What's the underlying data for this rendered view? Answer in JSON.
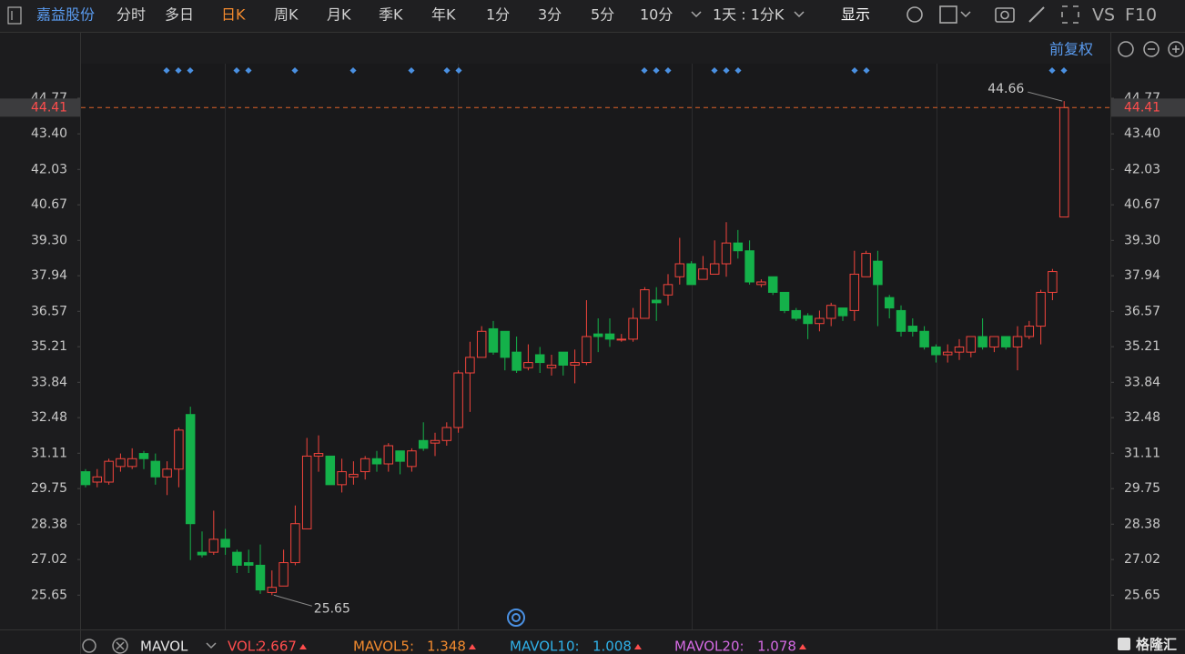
{
  "toolbar": {
    "stock": "嘉益股份",
    "tabs": [
      "分时",
      "多日",
      "日K",
      "周K",
      "月K",
      "季K",
      "年K",
      "1分",
      "3分",
      "5分",
      "10分"
    ],
    "period": "1天 : 1分K",
    "display": "显示",
    "vs": "VS",
    "f10": "F10",
    "adjust": "前复权"
  },
  "indicators": {
    "name": "MAVOL",
    "vol_label": "VOL:",
    "vol": 2.667,
    "mavol5_label": "MAVOL5:",
    "mavol5": 1.348,
    "mavol10_label": "MAVOL10:",
    "mavol10": 1.008,
    "mavol20_label": "MAVOL20:",
    "mavol20": 1.078,
    "watermark": "格隆汇"
  },
  "chart_data": {
    "type": "candlestick",
    "up_color": "#f2443c",
    "down_color": "#14b14a",
    "ylim": [
      24.4,
      46.1
    ],
    "yticks": [
      {
        "value": 44.77,
        "label": "44.77"
      },
      {
        "value": 43.4,
        "label": "43.40"
      },
      {
        "value": 42.03,
        "label": "42.03"
      },
      {
        "value": 40.67,
        "label": "40.67"
      },
      {
        "value": 39.3,
        "label": "39.30"
      },
      {
        "value": 37.94,
        "label": "37.94"
      },
      {
        "value": 36.57,
        "label": "36.57"
      },
      {
        "value": 35.21,
        "label": "35.21"
      },
      {
        "value": 33.84,
        "label": "33.84"
      },
      {
        "value": 32.48,
        "label": "32.48"
      },
      {
        "value": 31.11,
        "label": "31.11"
      },
      {
        "value": 29.75,
        "label": "29.75"
      },
      {
        "value": 28.38,
        "label": "28.38"
      },
      {
        "value": 27.02,
        "label": "27.02"
      },
      {
        "value": 25.65,
        "label": "25.65"
      }
    ],
    "grid": false,
    "last": 44.41,
    "max": 44.66,
    "min": 25.65,
    "open": [
      30.4,
      30.0,
      30.0,
      30.6,
      30.6,
      31.1,
      30.8,
      30.2,
      30.5,
      32.6,
      27.3,
      27.3,
      27.8,
      27.3,
      26.9,
      26.8,
      25.75,
      26.0,
      26.9,
      28.2,
      31.0,
      31.0,
      29.9,
      30.2,
      30.4,
      30.9,
      30.7,
      31.2,
      30.6,
      31.6,
      31.5,
      31.6,
      32.1,
      34.2,
      34.8,
      35.9,
      35.8,
      35.0,
      34.4,
      34.9,
      34.4,
      35.0,
      34.5,
      34.6,
      35.7,
      35.7,
      35.5,
      35.5,
      36.3,
      37.0,
      37.2,
      37.9,
      38.4,
      37.8,
      38.0,
      38.4,
      39.2,
      38.9,
      37.6,
      37.9,
      37.3,
      36.6,
      36.4,
      36.1,
      36.3,
      36.7,
      36.6,
      37.9,
      38.5,
      37.1,
      36.6,
      36.0,
      35.8,
      35.2,
      34.9,
      35.0,
      35.0,
      35.6,
      35.2,
      35.6,
      35.2,
      35.6,
      36.0,
      37.3,
      40.2
    ],
    "high": [
      30.5,
      30.5,
      30.9,
      31.1,
      31.3,
      31.2,
      31.1,
      30.8,
      32.1,
      32.9,
      28.1,
      28.9,
      28.2,
      27.4,
      27.4,
      27.6,
      26.6,
      27.4,
      29.1,
      31.7,
      31.8,
      31.0,
      30.9,
      30.8,
      31.0,
      31.2,
      31.5,
      31.2,
      31.3,
      32.3,
      31.9,
      32.3,
      34.3,
      35.4,
      36.0,
      36.2,
      35.8,
      35.6,
      35.3,
      35.2,
      34.9,
      35.0,
      35.1,
      37.0,
      36.3,
      36.3,
      35.7,
      36.7,
      37.5,
      37.5,
      38.0,
      39.4,
      38.5,
      38.7,
      39.3,
      40.0,
      39.7,
      39.3,
      37.8,
      37.9,
      37.3,
      36.7,
      36.5,
      36.6,
      36.9,
      36.7,
      38.9,
      38.9,
      38.9,
      37.2,
      36.8,
      36.3,
      36.0,
      35.3,
      35.3,
      35.5,
      35.6,
      36.3,
      35.6,
      35.6,
      36.0,
      36.2,
      37.4,
      38.2,
      44.66
    ],
    "low": [
      29.8,
      29.8,
      29.9,
      30.4,
      30.5,
      30.5,
      29.9,
      29.5,
      29.8,
      27.0,
      27.1,
      27.2,
      27.2,
      26.5,
      26.5,
      25.7,
      25.65,
      26.0,
      26.8,
      28.2,
      30.4,
      29.9,
      29.6,
      29.9,
      30.1,
      30.4,
      30.4,
      30.3,
      30.4,
      31.2,
      31.0,
      31.4,
      31.9,
      32.7,
      34.8,
      34.9,
      34.3,
      34.2,
      34.3,
      34.2,
      34.1,
      34.1,
      33.8,
      34.5,
      35.0,
      35.2,
      35.4,
      35.4,
      36.3,
      36.2,
      36.8,
      37.6,
      37.6,
      37.8,
      38.0,
      37.9,
      38.6,
      37.6,
      37.5,
      37.2,
      36.5,
      36.2,
      35.5,
      35.8,
      36.0,
      36.2,
      36.2,
      37.9,
      36.0,
      36.3,
      35.6,
      35.6,
      35.1,
      34.6,
      34.6,
      34.7,
      34.8,
      35.1,
      35.0,
      35.1,
      34.3,
      35.5,
      35.3,
      37.0,
      40.2
    ],
    "close": [
      29.9,
      30.2,
      30.8,
      30.9,
      30.9,
      30.9,
      30.2,
      30.5,
      32.0,
      28.4,
      27.2,
      27.8,
      27.5,
      26.8,
      26.8,
      25.85,
      25.95,
      26.9,
      28.4,
      31.0,
      31.1,
      29.9,
      30.4,
      30.3,
      30.9,
      30.7,
      31.4,
      30.8,
      31.2,
      31.3,
      31.6,
      32.1,
      34.2,
      34.8,
      35.8,
      35.0,
      34.8,
      34.3,
      34.6,
      34.6,
      34.5,
      34.5,
      34.6,
      35.6,
      35.6,
      35.5,
      35.5,
      36.3,
      37.4,
      36.9,
      37.6,
      38.4,
      37.6,
      38.2,
      38.4,
      39.2,
      38.9,
      37.7,
      37.7,
      37.3,
      36.6,
      36.3,
      36.1,
      36.3,
      36.8,
      36.4,
      38.0,
      38.8,
      37.6,
      36.7,
      35.8,
      35.8,
      35.2,
      34.9,
      35.0,
      35.2,
      35.6,
      35.2,
      35.6,
      35.2,
      35.6,
      36.0,
      37.3,
      38.1,
      44.41
    ]
  }
}
